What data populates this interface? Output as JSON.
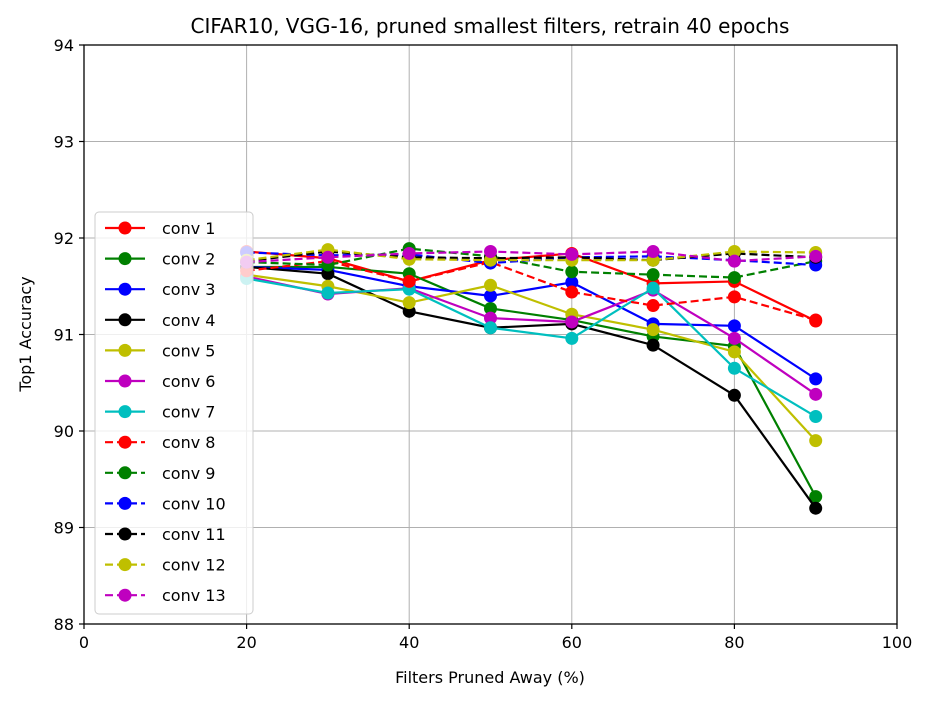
{
  "chart_data": {
    "type": "line",
    "title": "CIFAR10, VGG-16, pruned smallest filters, retrain 40 epochs",
    "xlabel": "Filters Pruned Away (%)",
    "ylabel": "Top1 Accuracy",
    "xlim": [
      0,
      100
    ],
    "ylim": [
      88,
      94
    ],
    "xticks": [
      "0",
      "20",
      "40",
      "60",
      "80",
      "100"
    ],
    "yticks": [
      "88",
      "89",
      "90",
      "91",
      "92",
      "93",
      "94"
    ],
    "grid": true,
    "legend_position": "left",
    "x": [
      20,
      30,
      40,
      50,
      60,
      70,
      80,
      90
    ],
    "series": [
      {
        "name": "conv 1",
        "color": "#ff0000",
        "dashed": false,
        "values": [
          91.86,
          91.79,
          91.55,
          91.77,
          91.84,
          91.53,
          91.55,
          91.14
        ]
      },
      {
        "name": "conv 2",
        "color": "#008000",
        "dashed": false,
        "values": [
          91.7,
          91.7,
          91.63,
          91.27,
          91.15,
          90.98,
          90.88,
          89.32
        ]
      },
      {
        "name": "conv 3",
        "color": "#0000ff",
        "dashed": false,
        "values": [
          91.7,
          91.67,
          91.5,
          91.4,
          91.54,
          91.11,
          91.09,
          90.54
        ]
      },
      {
        "name": "conv 4",
        "color": "#000000",
        "dashed": false,
        "values": [
          91.7,
          91.63,
          91.24,
          91.07,
          91.11,
          90.89,
          90.37,
          89.2
        ]
      },
      {
        "name": "conv 5",
        "color": "#bfbf00",
        "dashed": false,
        "values": [
          91.62,
          91.5,
          91.33,
          91.51,
          91.21,
          91.05,
          90.82,
          89.9
        ]
      },
      {
        "name": "conv 6",
        "color": "#bf00bf",
        "dashed": false,
        "values": [
          91.6,
          91.42,
          91.48,
          91.17,
          91.13,
          91.46,
          90.96,
          90.38
        ]
      },
      {
        "name": "conv 7",
        "color": "#00bfbf",
        "dashed": false,
        "values": [
          91.58,
          91.43,
          91.47,
          91.07,
          90.96,
          91.48,
          90.65,
          90.15
        ]
      },
      {
        "name": "conv 8",
        "color": "#ff0000",
        "dashed": true,
        "values": [
          91.66,
          91.76,
          91.55,
          91.75,
          91.44,
          91.3,
          91.39,
          91.15
        ]
      },
      {
        "name": "conv 9",
        "color": "#008000",
        "dashed": true,
        "values": [
          91.75,
          91.72,
          91.89,
          91.81,
          91.65,
          91.62,
          91.59,
          91.76
        ]
      },
      {
        "name": "conv 10",
        "color": "#0000ff",
        "dashed": true,
        "values": [
          91.85,
          91.82,
          91.83,
          91.74,
          91.8,
          91.81,
          91.77,
          91.72
        ]
      },
      {
        "name": "conv 11",
        "color": "#000000",
        "dashed": true,
        "values": [
          91.76,
          91.86,
          91.8,
          91.79,
          91.8,
          91.77,
          91.84,
          91.8
        ]
      },
      {
        "name": "conv 12",
        "color": "#bfbf00",
        "dashed": true,
        "values": [
          91.77,
          91.88,
          91.78,
          91.77,
          91.77,
          91.77,
          91.86,
          91.85
        ]
      },
      {
        "name": "conv 13",
        "color": "#bf00bf",
        "dashed": true,
        "values": [
          91.75,
          91.8,
          91.84,
          91.86,
          91.83,
          91.86,
          91.76,
          91.81
        ]
      }
    ]
  }
}
